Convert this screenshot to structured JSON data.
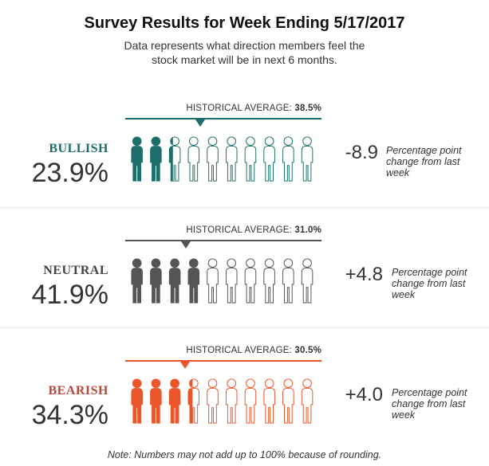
{
  "title": "Survey Results for Week Ending 5/17/2017",
  "subtitle": "Data represents what direction members feel the stock market will be in next 6 months.",
  "chart_data": {
    "type": "pictograph",
    "icons_total": 10,
    "hist_label_prefix": "HISTORICAL AVERAGE: ",
    "change_note": "Percentage point change from last week",
    "categories": [
      {
        "name": "BULLISH",
        "percent_label": "23.9%",
        "value": 23.9,
        "historical_average_label": "38.5%",
        "historical_average": 38.5,
        "change_label": "-8.9",
        "change": -8.9,
        "color": "#1d6e6a"
      },
      {
        "name": "NEUTRAL",
        "percent_label": "41.9%",
        "value": 41.9,
        "historical_average_label": "31.0%",
        "historical_average": 31.0,
        "change_label": "+4.8",
        "change": 4.8,
        "color": "#555555"
      },
      {
        "name": "BEARISH",
        "percent_label": "34.3%",
        "value": 34.3,
        "historical_average_label": "30.5%",
        "historical_average": 30.5,
        "change_label": "+4.0",
        "change": 4.0,
        "color": "#e8562a"
      }
    ]
  },
  "colors": {
    "bullish_label": "#1d6e6a",
    "neutral_label": "#444444",
    "bearish_label": "#b5483a",
    "icon_outline": "#555555"
  },
  "footnote": "Note: Numbers may not add up to 100% because of rounding."
}
